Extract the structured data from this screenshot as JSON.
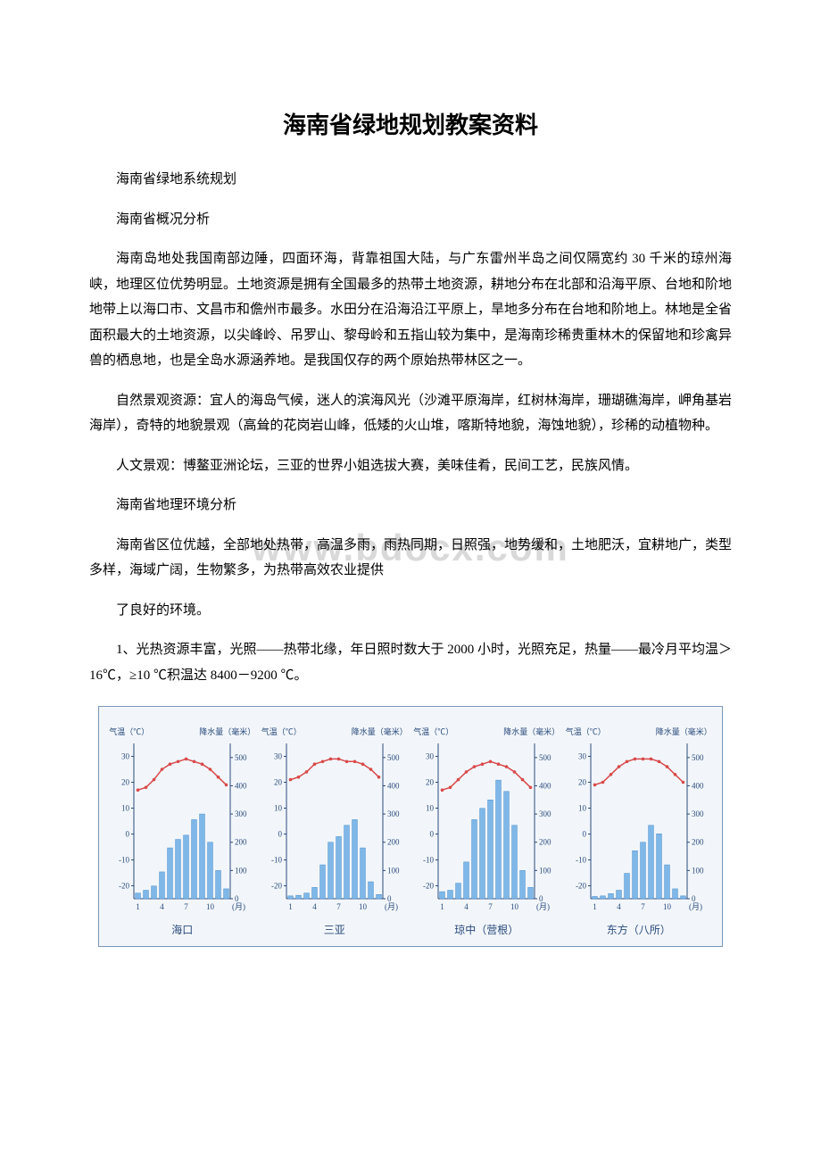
{
  "title": "海南省绿地规划教案资料",
  "paragraphs": {
    "p1": "海南省绿地系统规划",
    "p2": "海南省概况分析",
    "p3": "海南岛地处我国南部边陲，四面环海，背靠祖国大陆，与广东雷州半岛之间仅隔宽约 30 千米的琼州海峡，地理区位优势明显。土地资源是拥有全国最多的热带土地资源，耕地分布在北部和沿海平原、台地和阶地地带上以海口市、文昌市和儋州市最多。水田分在沿海沿江平原上，旱地多分布在台地和阶地上。林地是全省面积最大的土地资源，以尖峰岭、吊罗山、黎母岭和五指山较为集中，是海南珍稀贵重林木的保留地和珍禽异兽的栖息地，也是全岛水源涵养地。是我国仅存的两个原始热带林区之一。",
    "p4": "自然景观资源：宜人的海岛气候，迷人的滨海风光（沙滩平原海岸，红树林海岸，珊瑚礁海岸，岬角基岩海岸），奇特的地貌景观（高耸的花岗岩山峰，低矮的火山堆，喀斯特地貌，海蚀地貌），珍稀的动植物种。",
    "p5": "人文景观：博鳌亚洲论坛，三亚的世界小姐选拔大赛，美味佳肴，民间工艺，民族风情。",
    "p6": "海南省地理环境分析",
    "p7": "海南省区位优越，全部地处热带，高温多雨，雨热同期，日照强，地势缓和，土地肥沃，宜耕地广，类型多样，海域广阔，生物繁多，为热带高效农业提供",
    "p8": "了良好的环境。",
    "p9": "1、光热资源丰富，光照——热带北缘，年日照时数大于 2000 小时，光照充足，热量——最冷月平均温＞16℃，≥10 ℃积温达 8400－9200 ℃。"
  },
  "watermark": "www.bdocx.com",
  "charts": {
    "axis_left_label": "气温（℃）",
    "axis_right_label": "降水量（毫米）",
    "temp_ticks": [
      -20,
      -10,
      0,
      10,
      20,
      30
    ],
    "precip_ticks": [
      0,
      100,
      200,
      300,
      400,
      500
    ],
    "x_ticks": [
      1,
      4,
      7,
      10
    ],
    "x_label": "(月)",
    "temp_color": "#d94a4a",
    "bar_color": "#7fb8e8",
    "bar_border": "#4a8cc8",
    "grid_color": "#a8bcd4",
    "tick_color": "#2a4a7a",
    "bg_color": "#f2f6fb",
    "border_color": "#7a97b8",
    "temp_range": [
      -25,
      35
    ],
    "precip_range": [
      0,
      550
    ],
    "cities": [
      {
        "name": "海口",
        "temps": [
          17,
          18,
          21,
          25,
          27,
          28,
          29,
          28,
          27,
          25,
          22,
          19
        ],
        "precip": [
          20,
          30,
          45,
          95,
          180,
          210,
          225,
          280,
          300,
          200,
          100,
          35
        ]
      },
      {
        "name": "三亚",
        "temps": [
          21,
          22,
          24,
          27,
          28,
          29,
          29,
          28,
          28,
          27,
          25,
          22
        ],
        "precip": [
          10,
          12,
          20,
          40,
          120,
          200,
          220,
          260,
          280,
          180,
          60,
          15
        ]
      },
      {
        "name": "琼中（营根）",
        "temps": [
          17,
          18,
          21,
          24,
          26,
          27,
          28,
          27,
          26,
          24,
          21,
          18
        ],
        "precip": [
          25,
          30,
          55,
          130,
          280,
          320,
          350,
          420,
          380,
          260,
          100,
          40
        ]
      },
      {
        "name": "东方（八所）",
        "temps": [
          19,
          20,
          23,
          26,
          28,
          29,
          29,
          29,
          28,
          26,
          23,
          20
        ],
        "precip": [
          8,
          10,
          18,
          30,
          90,
          170,
          200,
          260,
          230,
          120,
          35,
          10
        ]
      }
    ]
  }
}
